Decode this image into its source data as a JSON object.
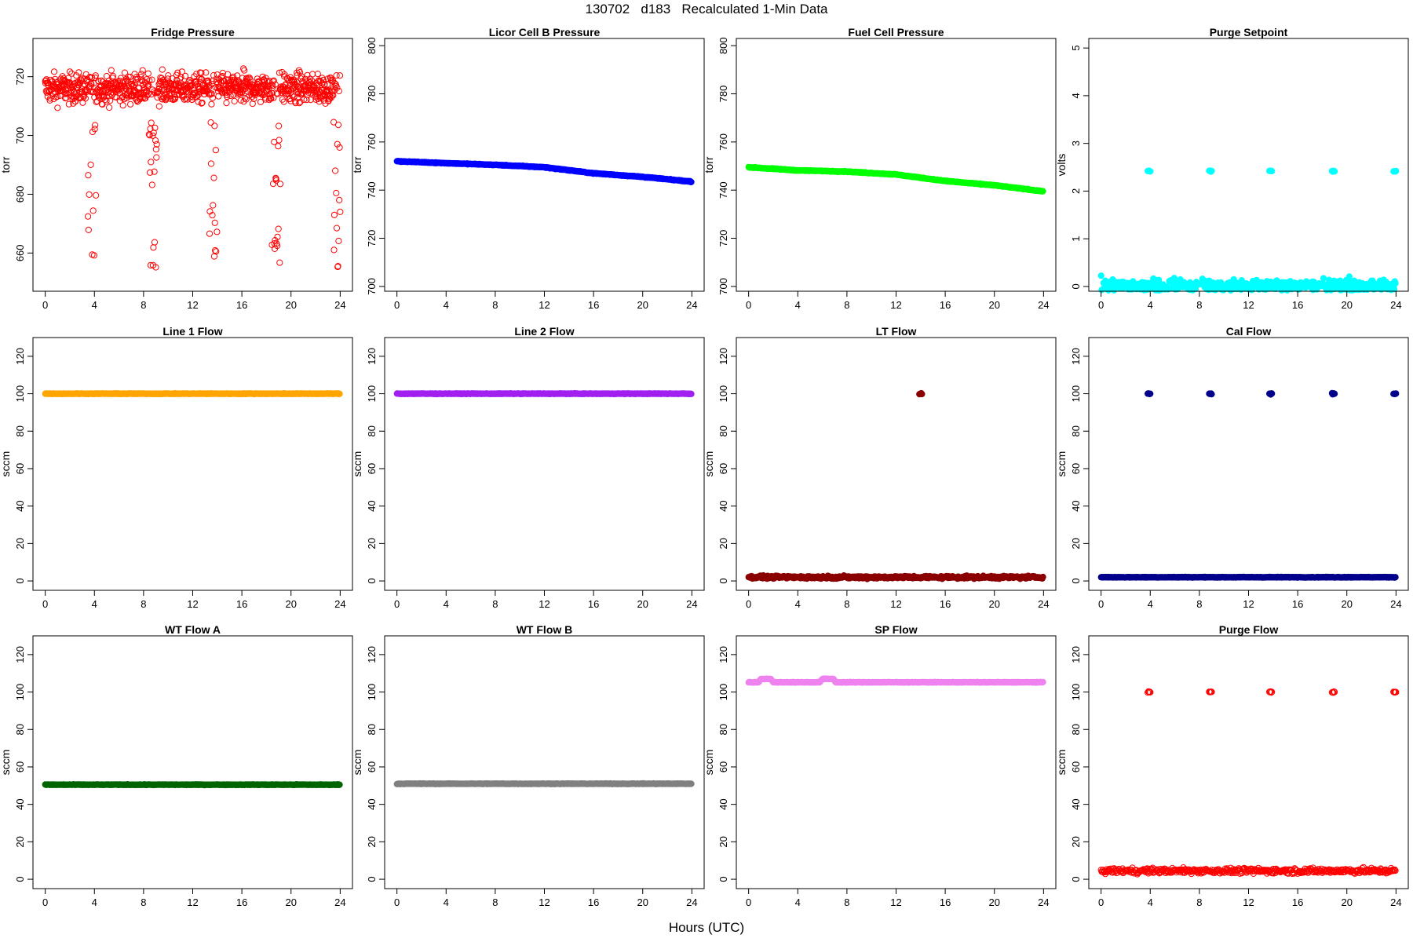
{
  "title": "130702   d183   Recalculated 1-Min Data",
  "xlabel": "Hours (UTC)",
  "chart_data": [
    {
      "type": "scatter",
      "title": "Fridge Pressure",
      "ylabel": "torr",
      "ylim": [
        647,
        733
      ],
      "yticks": [
        660,
        680,
        700,
        720
      ],
      "xlim": [
        -1,
        25
      ],
      "xticks": [
        0,
        4,
        8,
        12,
        16,
        20,
        24
      ],
      "color": "#ff0000",
      "marker": "open",
      "gen": {
        "mode": "fridge",
        "base": 716,
        "band": 9
      }
    },
    {
      "type": "scatter",
      "title": "Licor Cell B Pressure",
      "ylabel": "torr",
      "ylim": [
        698,
        803
      ],
      "yticks": [
        700,
        720,
        740,
        760,
        780,
        800
      ],
      "xlim": [
        -1,
        25
      ],
      "xticks": [
        0,
        4,
        8,
        12,
        16,
        20,
        24
      ],
      "color": "#0000ff",
      "marker": "filled",
      "series": {
        "x": [
          0,
          4,
          8,
          12,
          16,
          20,
          24
        ],
        "y": [
          752,
          751.2,
          750.5,
          749.5,
          747,
          745.5,
          743.5
        ]
      }
    },
    {
      "type": "scatter",
      "title": "Fuel Cell Pressure",
      "ylabel": "torr",
      "ylim": [
        698,
        803
      ],
      "yticks": [
        700,
        720,
        740,
        760,
        780,
        800
      ],
      "xlim": [
        -1,
        25
      ],
      "xticks": [
        0,
        4,
        8,
        12,
        16,
        20,
        24
      ],
      "color": "#00ff00",
      "marker": "filled",
      "series": {
        "x": [
          0,
          4,
          8,
          12,
          16,
          20,
          24
        ],
        "y": [
          749.5,
          748.2,
          747.7,
          746.5,
          743.8,
          742,
          739.5
        ]
      }
    },
    {
      "type": "scatter",
      "title": "Purge Setpoint",
      "ylabel": "volts",
      "ylim": [
        -0.1,
        5.2
      ],
      "yticks": [
        0,
        1,
        2,
        3,
        4,
        5
      ],
      "xlim": [
        -1,
        25
      ],
      "xticks": [
        0,
        4,
        8,
        12,
        16,
        20,
        24
      ],
      "color": "#00ffff",
      "marker": "filled",
      "series": {
        "x": [
          0,
          24
        ],
        "y": [
          0,
          0
        ]
      },
      "spikes": {
        "value": 2.42,
        "hours": [
          3.9,
          8.9,
          13.8,
          18.9,
          23.9
        ]
      }
    },
    {
      "type": "scatter",
      "title": "Line 1 Flow",
      "ylabel": "sccm",
      "ylim": [
        -5,
        130
      ],
      "yticks": [
        0,
        20,
        40,
        60,
        80,
        100,
        120
      ],
      "xlim": [
        -1,
        25
      ],
      "xticks": [
        0,
        4,
        8,
        12,
        16,
        20,
        24
      ],
      "color": "#ffa500",
      "marker": "filled",
      "series": {
        "x": [
          0,
          24
        ],
        "y": [
          100,
          100
        ]
      }
    },
    {
      "type": "scatter",
      "title": "Line 2 Flow",
      "ylabel": "sccm",
      "ylim": [
        -5,
        130
      ],
      "yticks": [
        0,
        20,
        40,
        60,
        80,
        100,
        120
      ],
      "xlim": [
        -1,
        25
      ],
      "xticks": [
        0,
        4,
        8,
        12,
        16,
        20,
        24
      ],
      "color": "#a020f0",
      "marker": "filled",
      "series": {
        "x": [
          0,
          24
        ],
        "y": [
          100,
          100
        ]
      }
    },
    {
      "type": "scatter",
      "title": "LT Flow",
      "ylabel": "sccm",
      "ylim": [
        -5,
        130
      ],
      "yticks": [
        0,
        20,
        40,
        60,
        80,
        100,
        120
      ],
      "xlim": [
        -1,
        25
      ],
      "xticks": [
        0,
        4,
        8,
        12,
        16,
        20,
        24
      ],
      "color": "#8b0000",
      "marker": "filled",
      "series": {
        "x": [
          0,
          24
        ],
        "y": [
          2,
          2
        ]
      },
      "spikes": {
        "value": 100,
        "hours": [
          14
        ]
      }
    },
    {
      "type": "scatter",
      "title": "Cal Flow",
      "ylabel": "sccm",
      "ylim": [
        -5,
        130
      ],
      "yticks": [
        0,
        20,
        40,
        60,
        80,
        100,
        120
      ],
      "xlim": [
        -1,
        25
      ],
      "xticks": [
        0,
        4,
        8,
        12,
        16,
        20,
        24
      ],
      "color": "#00008b",
      "marker": "filled",
      "series": {
        "x": [
          0,
          24
        ],
        "y": [
          2,
          2
        ]
      },
      "spikes": {
        "value": 100,
        "hours": [
          3.9,
          8.9,
          13.8,
          18.9,
          23.9
        ]
      }
    },
    {
      "type": "scatter",
      "title": "WT Flow A",
      "ylabel": "sccm",
      "ylim": [
        -5,
        130
      ],
      "yticks": [
        0,
        20,
        40,
        60,
        80,
        100,
        120
      ],
      "xlim": [
        -1,
        25
      ],
      "xticks": [
        0,
        4,
        8,
        12,
        16,
        20,
        24
      ],
      "color": "#006400",
      "marker": "filled",
      "series": {
        "x": [
          0,
          24
        ],
        "y": [
          50.5,
          50.5
        ]
      }
    },
    {
      "type": "scatter",
      "title": "WT Flow B",
      "ylabel": "sccm",
      "ylim": [
        -5,
        130
      ],
      "yticks": [
        0,
        20,
        40,
        60,
        80,
        100,
        120
      ],
      "xlim": [
        -1,
        25
      ],
      "xticks": [
        0,
        4,
        8,
        12,
        16,
        20,
        24
      ],
      "color": "#808080",
      "marker": "filled",
      "series": {
        "x": [
          0,
          24
        ],
        "y": [
          51,
          51
        ]
      }
    },
    {
      "type": "scatter",
      "title": "SP Flow",
      "ylabel": "sccm",
      "ylim": [
        -5,
        130
      ],
      "yticks": [
        0,
        20,
        40,
        60,
        80,
        100,
        120
      ],
      "xlim": [
        -1,
        25
      ],
      "xticks": [
        0,
        4,
        8,
        12,
        16,
        20,
        24
      ],
      "color": "#ee82ee",
      "marker": "filled",
      "series": {
        "x": [
          0,
          0.8,
          1,
          1.8,
          2,
          5.8,
          6,
          6.9,
          7.1,
          24
        ],
        "y": [
          105.2,
          105.2,
          107,
          107,
          105.2,
          105.2,
          107,
          107,
          105.2,
          105.2
        ]
      }
    },
    {
      "type": "scatter",
      "title": "Purge Flow",
      "ylabel": "sccm",
      "ylim": [
        -5,
        130
      ],
      "yticks": [
        0,
        20,
        40,
        60,
        80,
        100,
        120
      ],
      "xlim": [
        -1,
        25
      ],
      "xticks": [
        0,
        4,
        8,
        12,
        16,
        20,
        24
      ],
      "color": "#ff0000",
      "marker": "open",
      "series": {
        "x": [
          0,
          24
        ],
        "y": [
          4.5,
          4.5
        ]
      },
      "spikes": {
        "value": 100,
        "hours": [
          3.9,
          8.9,
          13.8,
          18.9,
          23.9
        ]
      }
    }
  ]
}
